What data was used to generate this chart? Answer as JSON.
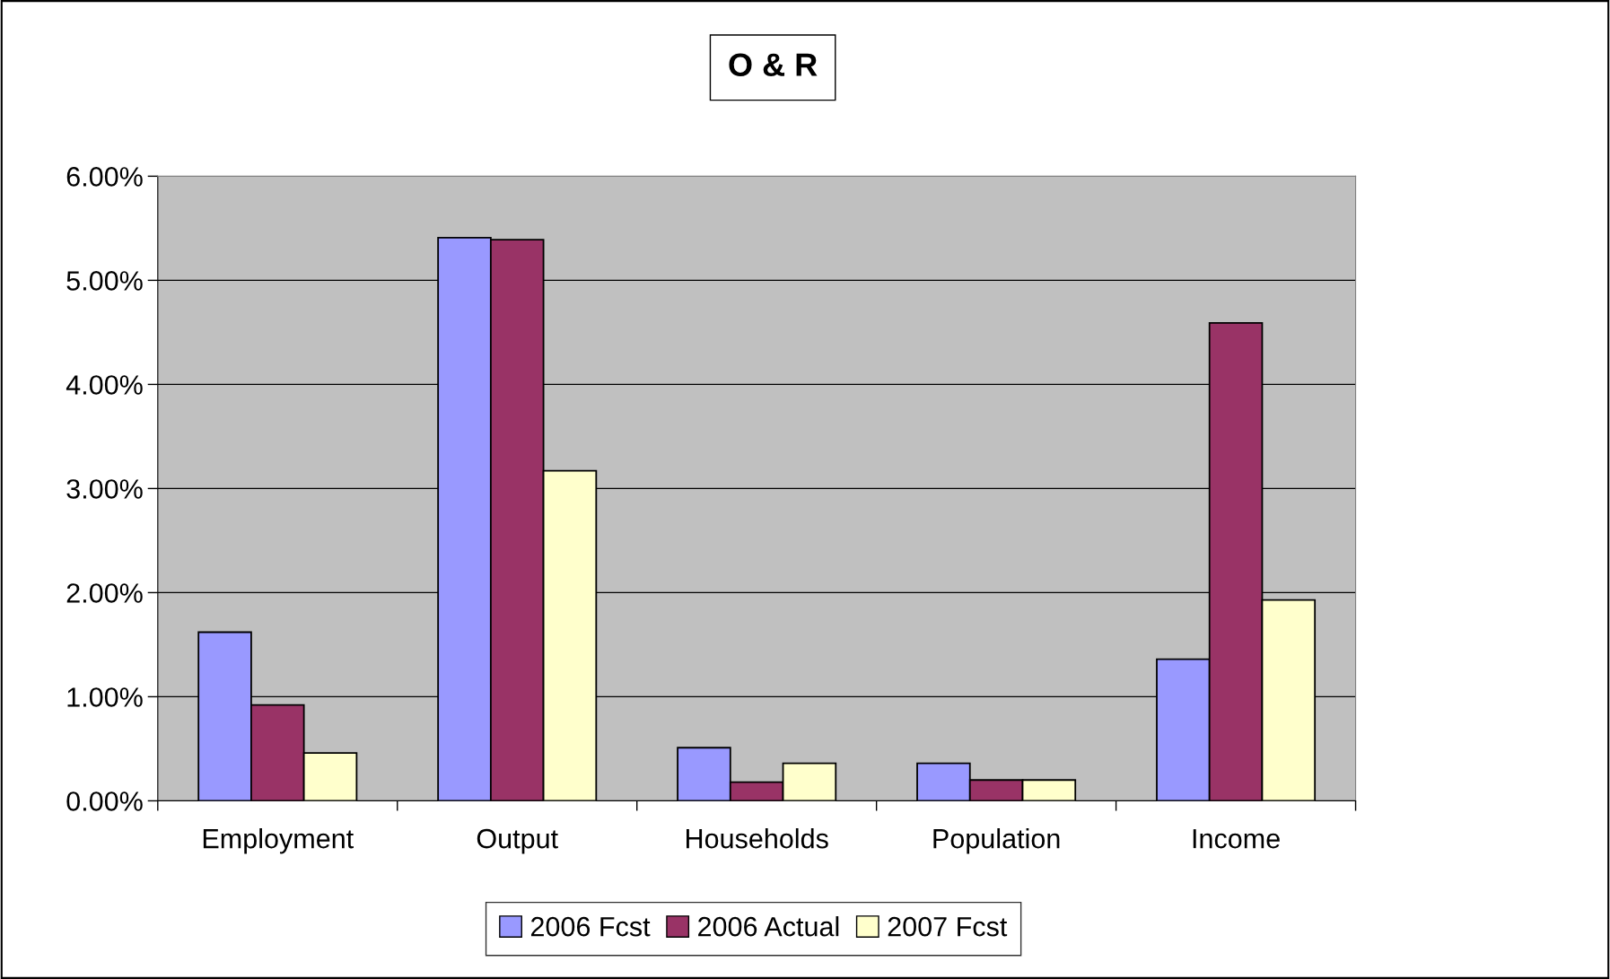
{
  "chart_data": {
    "type": "bar",
    "title": "O & R",
    "categories": [
      "Employment",
      "Output",
      "Households",
      "Population",
      "Income"
    ],
    "series": [
      {
        "name": "2006 Fcst",
        "color": "#9999ff",
        "values": [
          1.62,
          5.41,
          0.51,
          0.36,
          1.36
        ]
      },
      {
        "name": "2006 Actual",
        "color": "#993366",
        "values": [
          0.92,
          5.39,
          0.18,
          0.2,
          4.59
        ]
      },
      {
        "name": "2007 Fcst",
        "color": "#ffffcc",
        "values": [
          0.46,
          3.17,
          0.36,
          0.2,
          1.93
        ]
      }
    ],
    "ylim": [
      0,
      6
    ],
    "yticks": [
      {
        "value": 0,
        "label": "0.00%"
      },
      {
        "value": 1,
        "label": "1.00%"
      },
      {
        "value": 2,
        "label": "2.00%"
      },
      {
        "value": 3,
        "label": "3.00%"
      },
      {
        "value": 4,
        "label": "4.00%"
      },
      {
        "value": 5,
        "label": "5.00%"
      },
      {
        "value": 6,
        "label": "6.00%"
      }
    ],
    "grid": "y",
    "legend": "bottom"
  }
}
